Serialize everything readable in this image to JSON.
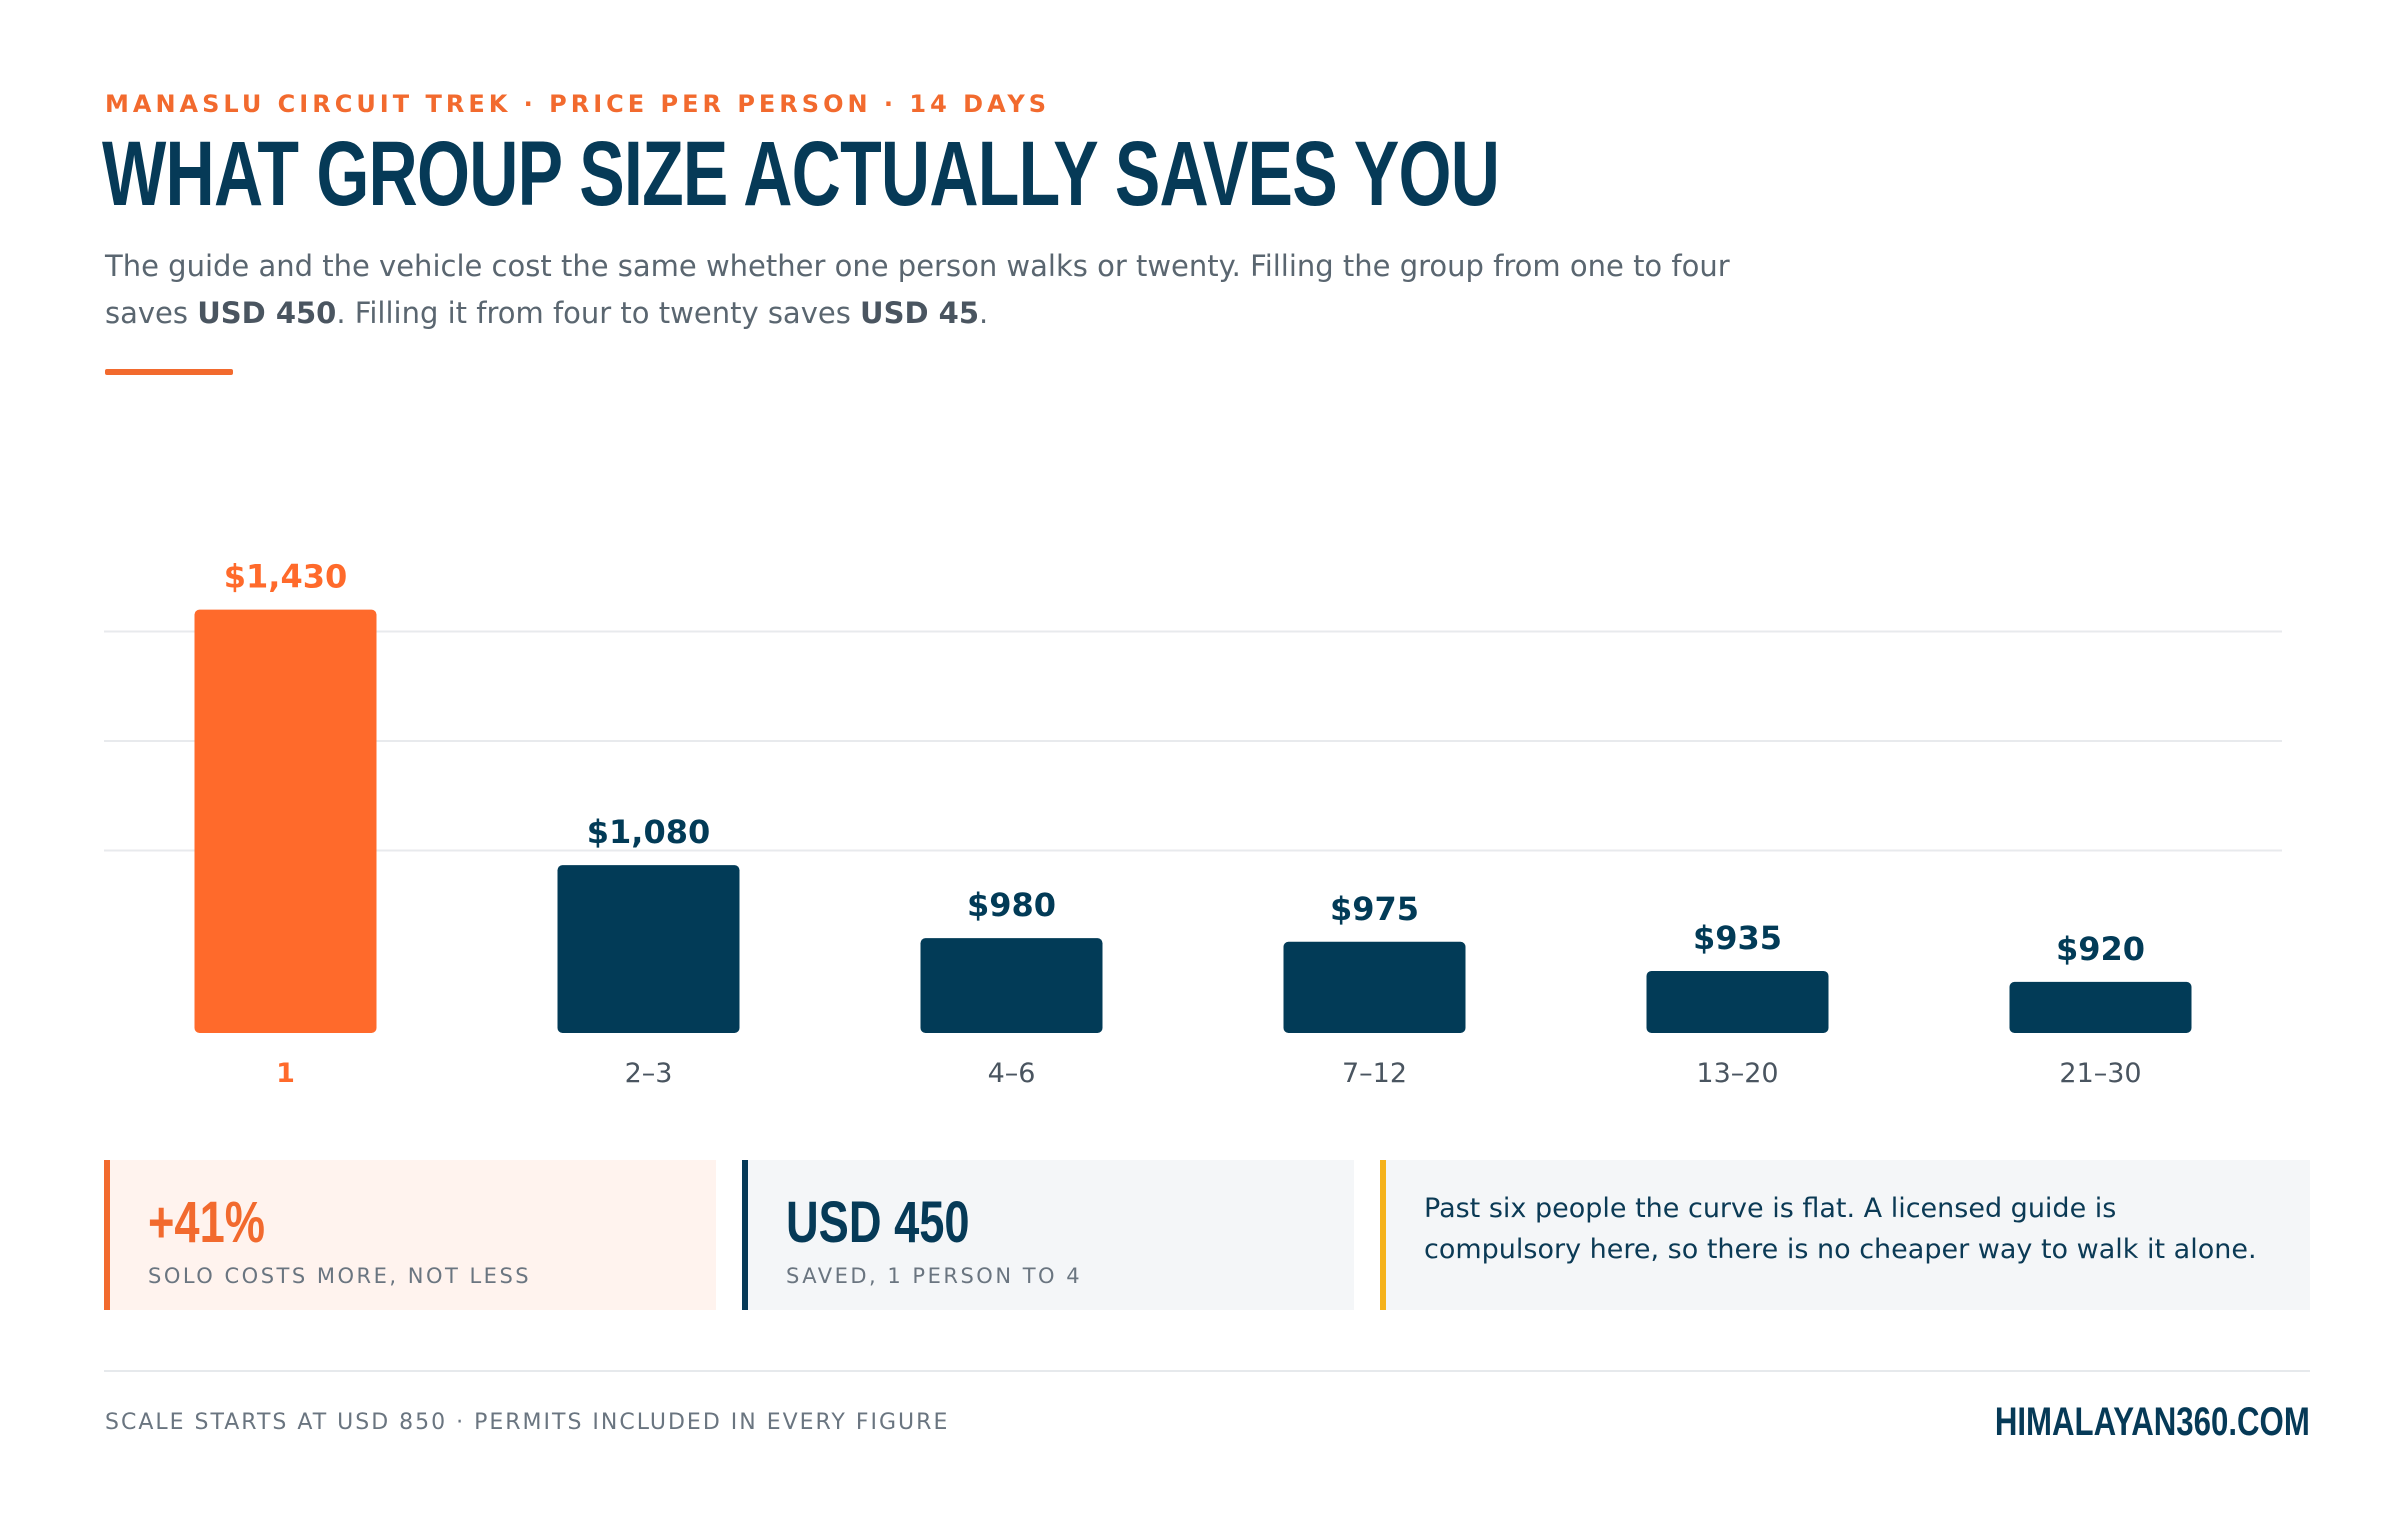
{
  "header": {
    "eyebrow": "MANASLU CIRCUIT TREK · PRICE PER PERSON · 14 DAYS",
    "title": "WHAT GROUP SIZE ACTUALLY SAVES YOU",
    "subtitle_part1": "The guide and the vehicle cost the same whether one person walks or twenty. Filling the group from one to four saves ",
    "subtitle_bold1": "USD 450",
    "subtitle_part2": ". Filling it from four to twenty saves ",
    "subtitle_bold2": "USD 45",
    "subtitle_part3": "."
  },
  "chart_data": {
    "type": "bar",
    "categories": [
      "1",
      "2–3",
      "4–6",
      "7–12",
      "13–20",
      "21–30"
    ],
    "values": [
      1430,
      1080,
      980,
      975,
      935,
      920
    ],
    "value_labels": [
      "$1,430",
      "$1,080",
      "$980",
      "$975",
      "$935",
      "$920"
    ],
    "ylim": [
      850,
      1450
    ],
    "grid": true,
    "highlight_index": 0,
    "colors": {
      "highlight": "#ff6a2b",
      "bar": "#023b57",
      "grid": "#e8eaed",
      "axis_label": "#4a5560"
    }
  },
  "stats": {
    "stat1_value": "+41%",
    "stat1_label": "SOLO COSTS MORE, NOT LESS",
    "stat2_value": "USD 450",
    "stat2_label": "SAVED, 1 PERSON TO 4",
    "note": "Past six people the curve is flat. A licensed guide is compulsory here, so there is no cheaper way to walk it alone."
  },
  "footer": {
    "note": "SCALE STARTS AT USD 850 · PERMITS INCLUDED IN EVERY FIGURE",
    "brand": "HIMALAYAN360.COM"
  }
}
